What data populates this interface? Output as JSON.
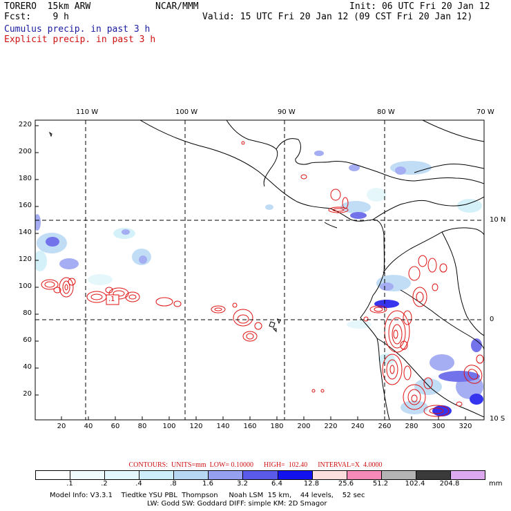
{
  "header": {
    "model": "TORERO  15km ARW",
    "fcst": "Fcst:    9 h",
    "org": "NCAR/MMM",
    "init": "Init: 06 UTC Fri 20 Jan 12",
    "valid": "Valid: 15 UTC Fri 20 Jan 12 (09 CST Fri 20 Jan 12)",
    "cumulus": "Cumulus precip. in past 3 h",
    "explicit": "Explicit precip. in past 3 h"
  },
  "map": {
    "lon_labels": [
      "110 W",
      "100 W",
      "90 W",
      "80 W",
      "70 W"
    ],
    "lat_labels": [
      "10 N",
      "0",
      "10 S"
    ],
    "y_ticks": [
      "220",
      "200",
      "180",
      "160",
      "140",
      "120",
      "100",
      "80",
      "60",
      "40",
      "20"
    ],
    "x_ticks": [
      "20",
      "40",
      "60",
      "80",
      "100",
      "120",
      "140",
      "160",
      "180",
      "200",
      "220",
      "240",
      "260",
      "280",
      "300",
      "320"
    ],
    "annotation": ".1",
    "colors": {
      "cumulus": "#2828e0",
      "explicit": "#e01010",
      "coast": "#000000"
    }
  },
  "contour_info": "CONTOURS:  UNITS=mm  LOW= 0.10000      HIGH=  102.40      INTERVAL=X  4.0000",
  "colorbar": {
    "labels": [
      ".1",
      ".2",
      ".4",
      ".8",
      "1.6",
      "3.2",
      "6.4",
      "12.8",
      "25.6",
      "51.2",
      "102.4",
      "204.8"
    ],
    "unit": "mm",
    "colors": [
      "#ffffff",
      "#f0fbff",
      "#e2f6fc",
      "#cdeef8",
      "#b7d8f4",
      "#96a0f0",
      "#5a5ae8",
      "#1212ee",
      "#fcdede",
      "#f58ab8",
      "#b4b4b4",
      "#3a3a3a",
      "#dca8f0"
    ]
  },
  "footer": {
    "line1": "Model Info: V3.3.1    Tiedtke YSU PBL  Thompson     Noah LSM  15 km,    44 levels,    52 sec",
    "line2": "LW: Godd SW: Goddard DIFF: simple KM: 2D Smagor"
  }
}
